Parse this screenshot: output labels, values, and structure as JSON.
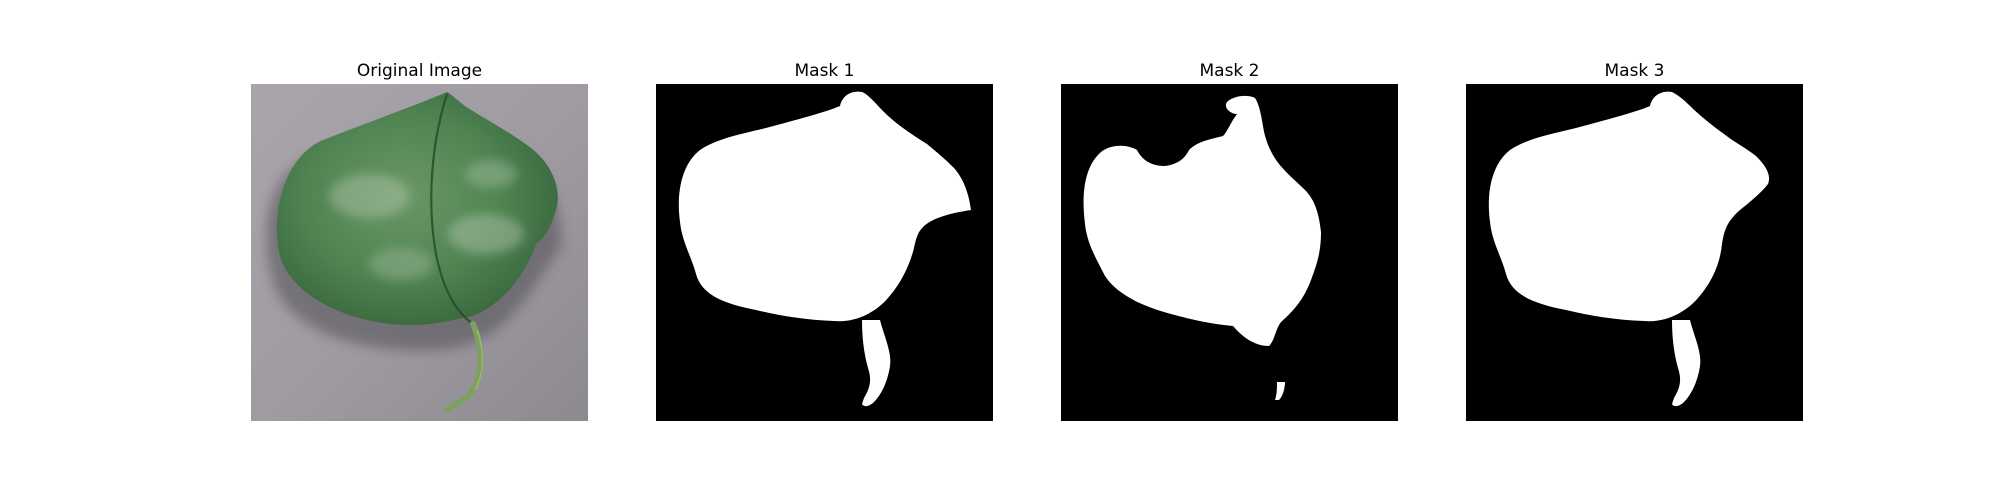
{
  "panels": [
    {
      "title": "Original Image",
      "kind": "photo"
    },
    {
      "title": "Mask 1",
      "kind": "mask"
    },
    {
      "title": "Mask 2",
      "kind": "mask"
    },
    {
      "title": "Mask 3",
      "kind": "mask"
    }
  ],
  "colors": {
    "background": "#ffffff",
    "mask_foreground": "#ffffff",
    "mask_background": "#000000",
    "leaf_green": "#4f8452",
    "leaf_dark": "#2f5a34",
    "surface_gray": "#9d98a0",
    "stem_green": "#7ea05e"
  }
}
